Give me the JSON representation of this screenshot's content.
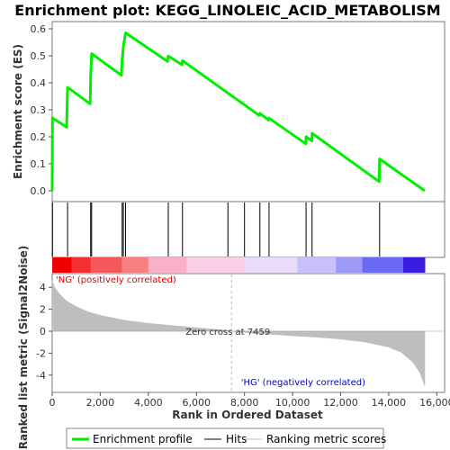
{
  "chart_data": {
    "type": "line",
    "title": "Enrichment plot: KEGG_LINOLEIC_ACID_METABOLISM",
    "xlabel": "Rank in Ordered Dataset",
    "xlim": [
      0,
      16000
    ],
    "x_ticks": [
      "0",
      "2,000",
      "4,000",
      "6,000",
      "8,000",
      "10,000",
      "12,000",
      "14,000",
      "16,000"
    ],
    "panels": {
      "es": {
        "ylabel": "Enrichment score (ES)",
        "ylim": [
          -0.02,
          0.6
        ],
        "y_ticks": [
          "0.0",
          "0.1",
          "0.2",
          "0.3",
          "0.4",
          "0.5",
          "0.6"
        ],
        "series": [
          {
            "name": "Enrichment profile",
            "color": "#00ee00",
            "x": [
              0,
              12,
              600,
              640,
              1580,
              1600,
              1640,
              2880,
              2910,
              2960,
              3050,
              4800,
              4830,
              5400,
              5420,
              8600,
              8640,
              9000,
              9020,
              10550,
              10560,
              10800,
              10810,
              13600,
              13620,
              15500
            ],
            "y": [
              0.0,
              0.27,
              0.236,
              0.383,
              0.322,
              0.418,
              0.508,
              0.428,
              0.483,
              0.535,
              0.585,
              0.479,
              0.499,
              0.467,
              0.482,
              0.28,
              0.287,
              0.262,
              0.269,
              0.174,
              0.2,
              0.185,
              0.213,
              0.034,
              0.118,
              0.0
            ]
          }
        ]
      },
      "hits": {
        "name": "Hits",
        "color": "#000000",
        "x": [
          12,
          640,
          1600,
          1640,
          2910,
          2960,
          3050,
          4830,
          5420,
          7310,
          8000,
          8640,
          9020,
          10560,
          10810,
          13620
        ]
      },
      "metric": {
        "name": "Ranking metric scores",
        "ylabel": "Ranked list metric (Signal2Noise)",
        "ylim": [
          -5,
          5
        ],
        "y_ticks": [
          "-4",
          "-2",
          "0",
          "2",
          "4"
        ],
        "color": "#bebebe",
        "x": [
          0,
          100,
          300,
          600,
          1000,
          1500,
          2000,
          3000,
          4000,
          5000,
          6000,
          7000,
          7459,
          8000,
          9000,
          10000,
          11000,
          12000,
          13000,
          14000,
          14500,
          15000,
          15300,
          15500
        ],
        "y": [
          4.6,
          4.0,
          3.4,
          2.75,
          2.25,
          1.75,
          1.45,
          1.0,
          0.72,
          0.52,
          0.32,
          0.12,
          0.0,
          -0.12,
          -0.27,
          -0.42,
          -0.55,
          -0.72,
          -0.98,
          -1.45,
          -1.9,
          -2.8,
          -3.8,
          -5.0
        ]
      }
    },
    "annotations": {
      "pos_label": "'NG' (positively correlated)",
      "neg_label": "'HG' (negatively correlated)",
      "zero_cross": "Zero cross at 7459",
      "zero_cross_x": 7459,
      "pos_color": "#dd0000",
      "neg_color": "#0000cc"
    },
    "heatbar": {
      "ranks": [
        0,
        800,
        1600,
        2900,
        4000,
        5600,
        8000,
        10200,
        11800,
        12900,
        14600,
        15500
      ],
      "colors": [
        "#ee0000",
        "#f23030",
        "#f55858",
        "#f78080",
        "#fab0c8",
        "#fad0e8",
        "#e8dcf8",
        "#c8c0f8",
        "#9e9af8",
        "#6a6af4",
        "#3a1ee0"
      ]
    },
    "legend": {
      "position": "bottom",
      "items": [
        {
          "label": "Enrichment profile",
          "color": "#00ee00",
          "kind": "thick-line"
        },
        {
          "label": "Hits",
          "color": "#000000",
          "kind": "line"
        },
        {
          "label": "Ranking metric scores",
          "color": "#bebebe",
          "kind": "line"
        }
      ]
    },
    "grid": false
  }
}
